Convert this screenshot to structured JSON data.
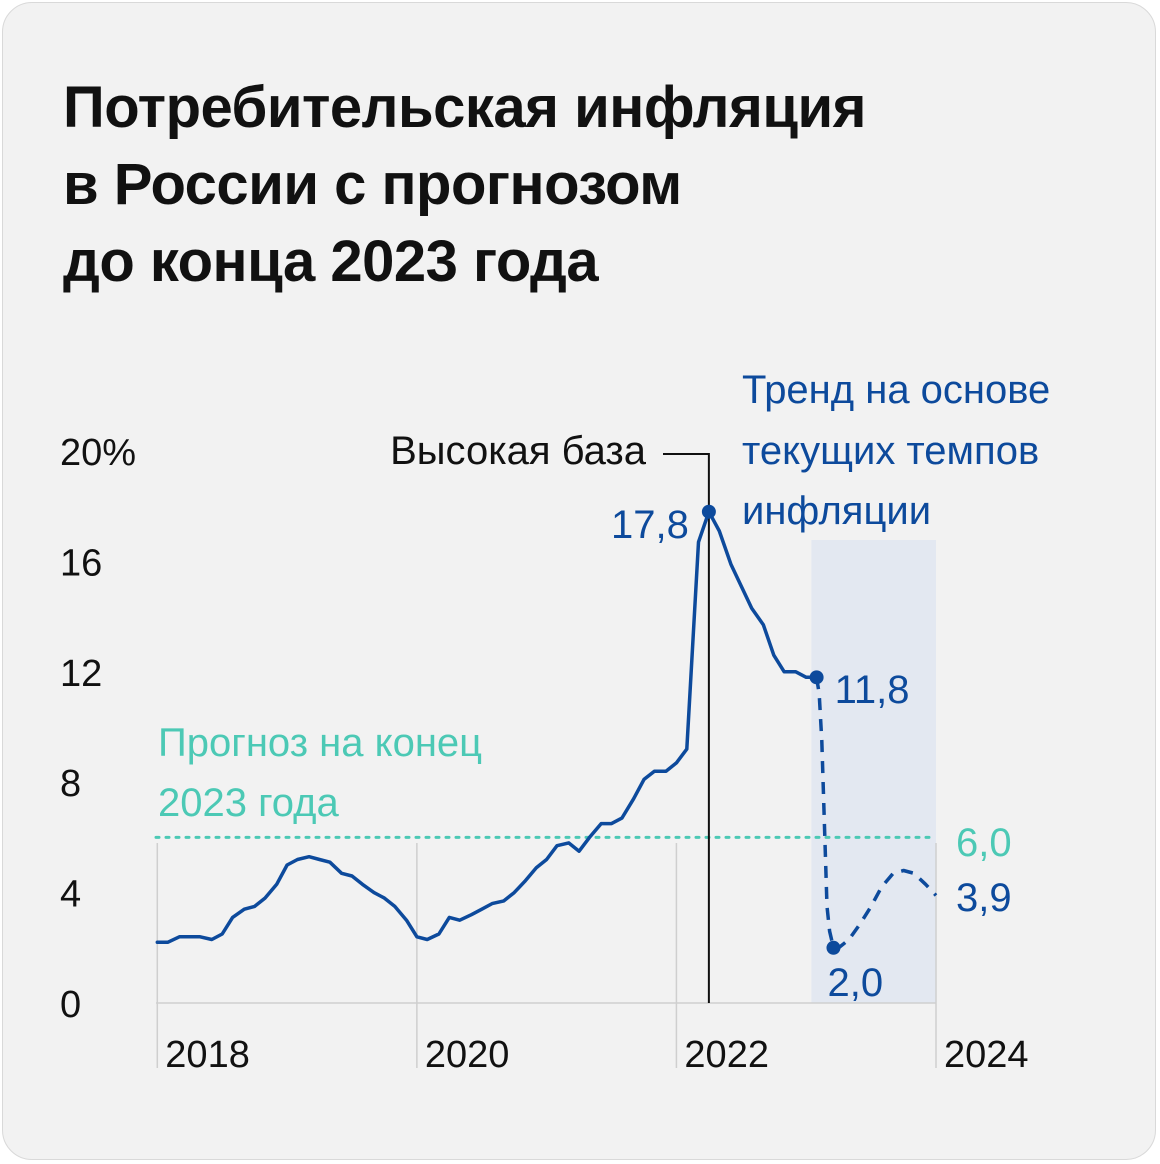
{
  "title_lines": [
    "Потребительская инфляция",
    "в России с прогнозом",
    "до конца 2023 года"
  ],
  "colors": {
    "background": "#f2f2f2",
    "line": "#0d4a9c",
    "forecast_band": "#e3e8f1",
    "target": "#4cc9b5",
    "text": "#111111"
  },
  "chart_data": {
    "type": "line",
    "ylim": [
      0,
      20
    ],
    "y_ticks": [
      {
        "value": 0,
        "label": "0"
      },
      {
        "value": 4,
        "label": "4"
      },
      {
        "value": 8,
        "label": "8"
      },
      {
        "value": 12,
        "label": "12"
      },
      {
        "value": 16,
        "label": "16"
      },
      {
        "value": 20,
        "label": "20%"
      }
    ],
    "x_range": [
      2017.99,
      2024.0
    ],
    "x_ticks": [
      {
        "value": 2018,
        "label": "2018"
      },
      {
        "value": 2020,
        "label": "2020"
      },
      {
        "value": 2022,
        "label": "2022"
      },
      {
        "value": 2024,
        "label": "2024"
      }
    ],
    "grid": "vertical lines at each year tick",
    "actual": {
      "x": [
        2018.0,
        2018.08,
        2018.17,
        2018.25,
        2018.33,
        2018.42,
        2018.5,
        2018.58,
        2018.67,
        2018.75,
        2018.83,
        2018.92,
        2019.0,
        2019.08,
        2019.17,
        2019.25,
        2019.33,
        2019.42,
        2019.5,
        2019.58,
        2019.67,
        2019.75,
        2019.83,
        2019.92,
        2020.0,
        2020.08,
        2020.17,
        2020.25,
        2020.33,
        2020.42,
        2020.5,
        2020.58,
        2020.67,
        2020.75,
        2020.83,
        2020.92,
        2021.0,
        2021.08,
        2021.17,
        2021.25,
        2021.33,
        2021.42,
        2021.5,
        2021.58,
        2021.67,
        2021.75,
        2021.83,
        2021.92,
        2022.0,
        2022.08,
        2022.17,
        2022.25,
        2022.33,
        2022.42,
        2022.5,
        2022.58,
        2022.67,
        2022.75,
        2022.83,
        2022.92,
        2023.0,
        2023.08
      ],
      "y": [
        2.2,
        2.2,
        2.4,
        2.4,
        2.4,
        2.3,
        2.5,
        3.1,
        3.4,
        3.5,
        3.8,
        4.3,
        5.0,
        5.2,
        5.3,
        5.2,
        5.1,
        4.7,
        4.6,
        4.3,
        4.0,
        3.8,
        3.5,
        3.0,
        2.4,
        2.3,
        2.5,
        3.1,
        3.0,
        3.2,
        3.4,
        3.6,
        3.7,
        4.0,
        4.4,
        4.9,
        5.2,
        5.7,
        5.8,
        5.5,
        6.0,
        6.5,
        6.5,
        6.7,
        7.4,
        8.1,
        8.4,
        8.4,
        8.7,
        9.2,
        16.7,
        17.8,
        17.1,
        15.9,
        15.1,
        14.3,
        13.7,
        12.6,
        12.0,
        12.0,
        11.8,
        11.8
      ]
    },
    "trend": {
      "x": [
        2023.08,
        2023.1,
        2023.12,
        2023.14,
        2023.16,
        2023.18,
        2023.21,
        2023.25,
        2023.33,
        2023.42,
        2023.5,
        2023.58,
        2023.67,
        2023.75,
        2023.83,
        2023.92,
        2024.0
      ],
      "y": [
        11.8,
        11.2,
        9.5,
        6.5,
        3.5,
        2.6,
        2.0,
        2.0,
        2.3,
        2.9,
        3.5,
        4.2,
        4.7,
        4.8,
        4.7,
        4.3,
        3.9
      ]
    },
    "forecast_band": {
      "from": 2023.04,
      "to": 2024.0
    },
    "target": {
      "value": 6.0,
      "label": "6,0"
    },
    "annotations": {
      "peak": {
        "x": 2022.25,
        "y": 17.8,
        "label": "17,8"
      },
      "last_actual": {
        "x": 2023.08,
        "y": 11.8,
        "label": "11,8"
      },
      "trend_min": {
        "x": 2023.21,
        "y": 2.0,
        "label": "2,0"
      },
      "trend_end": {
        "x": 2024.0,
        "y": 3.9,
        "label": "3,9"
      }
    },
    "notes": {
      "high_base": "Высокая база",
      "trend_lines": [
        "Тренд на основе",
        "текущих темпов",
        "инфляции"
      ],
      "target_lines": [
        "Прогноз на конец",
        "2023 года"
      ]
    }
  }
}
